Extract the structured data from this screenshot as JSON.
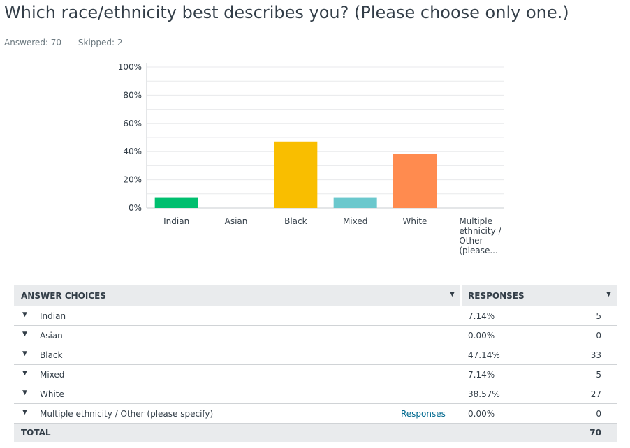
{
  "question": {
    "title": "Which race/ethnicity best describes you? (Please choose only one.)",
    "answered": "Answered: 70",
    "skipped": "Skipped: 2"
  },
  "chart_data": {
    "type": "bar",
    "categories": [
      "Indian",
      "Asian",
      "Black",
      "Mixed",
      "White",
      [
        "Multiple",
        "ethnicity /",
        "Other",
        "(please..."
      ]
    ],
    "values": [
      7.14,
      0.0,
      47.14,
      7.14,
      38.57,
      0.0
    ],
    "colors": [
      "#00bf6f",
      "#507cb6",
      "#f9be00",
      "#6bc8cd",
      "#ff8b4f",
      "#7f7fff"
    ],
    "yticks": [
      "0%",
      "20%",
      "40%",
      "60%",
      "80%",
      "100%"
    ],
    "ylim": [
      0,
      100
    ],
    "grid": true
  },
  "table": {
    "header_answer": "ANSWER CHOICES",
    "header_responses": "RESPONSES",
    "responses_link": "Responses",
    "rows": [
      {
        "label": "Indian",
        "pct": "7.14%",
        "count": "5"
      },
      {
        "label": "Asian",
        "pct": "0.00%",
        "count": "0"
      },
      {
        "label": "Black",
        "pct": "47.14%",
        "count": "33"
      },
      {
        "label": "Mixed",
        "pct": "7.14%",
        "count": "5"
      },
      {
        "label": "White",
        "pct": "38.57%",
        "count": "27"
      },
      {
        "label": "Multiple ethnicity / Other (please specify)",
        "pct": "0.00%",
        "count": "0"
      }
    ],
    "total_label": "TOTAL",
    "total_value": "70"
  }
}
